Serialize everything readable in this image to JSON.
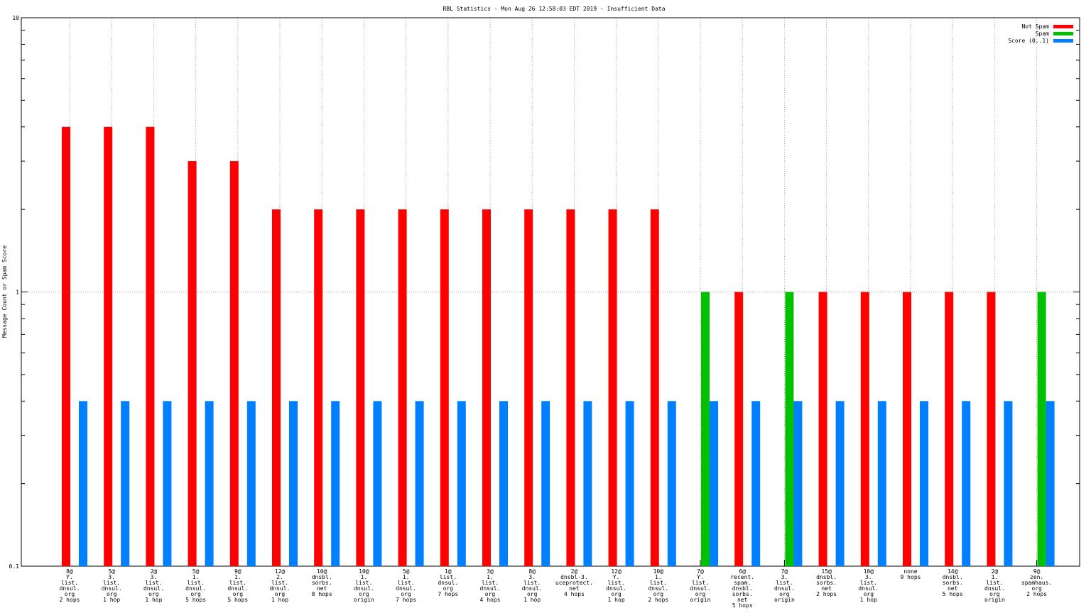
{
  "chart_data": {
    "type": "bar",
    "title": "RBL Statistics - Mon Aug 26 12:58:03 EDT 2019 - Insufficient Data",
    "y_label": "Message Count or Spam Score",
    "log_y": true,
    "grid": true,
    "legend": "top-right",
    "ylim": [
      0.1,
      10
    ],
    "yticks": [
      0.1,
      1,
      10
    ],
    "categories": [
      [
        "8@",
        "Y.",
        "list.",
        "dnsul.",
        "org",
        "2 hops"
      ],
      [
        "5@",
        "3.",
        "list.",
        "dnsul.",
        "org",
        "1 hop"
      ],
      [
        "2@",
        "3.",
        "list.",
        "dnsul.",
        "org",
        "1 hop"
      ],
      [
        "5@",
        "1.",
        "list.",
        "dnsul.",
        "org",
        "5 hops"
      ],
      [
        "9@",
        "1.",
        "list.",
        "dnsul.",
        "org",
        "5 hops"
      ],
      [
        "12@",
        "2.",
        "list.",
        "dnsul.",
        "org",
        "1 hop"
      ],
      [
        "10@",
        "dnsbl.",
        "sorbs.",
        "net",
        "8 hops"
      ],
      [
        "10@",
        "1.",
        "list.",
        "dnsul.",
        "org",
        "origin"
      ],
      [
        "5@",
        "1.",
        "list.",
        "dnsul.",
        "org",
        "7 hops"
      ],
      [
        "1@",
        "list.",
        "dnsul.",
        "org",
        "7 hops"
      ],
      [
        "3@",
        "1.",
        "list.",
        "dnsul.",
        "org",
        "4 hops"
      ],
      [
        "8@",
        "3.",
        "list.",
        "dnsul.",
        "org",
        "1 hop"
      ],
      [
        "2@",
        "dnsbl-3.",
        "uceprotect.",
        "net",
        "4 hops"
      ],
      [
        "12@",
        "Y.",
        "list.",
        "dnsul.",
        "org",
        "1 hop"
      ],
      [
        "10@",
        "1.",
        "list.",
        "dnsul.",
        "org",
        "2 hops"
      ],
      [
        "7@",
        "Y.",
        "list.",
        "dnsul.",
        "org",
        "origin"
      ],
      [
        "6@",
        "recent.",
        "spam.",
        "dnsbl.",
        "sorbs.",
        "net",
        "5 hops"
      ],
      [
        "7@",
        "3.",
        "list.",
        "dnsul.",
        "org",
        "origin"
      ],
      [
        "15@",
        "dnsbl.",
        "sorbs.",
        "net",
        "2 hops"
      ],
      [
        "10@",
        "3.",
        "list.",
        "dnsul.",
        "org",
        "1 hop"
      ],
      [
        "none",
        "9 hops"
      ],
      [
        "14@",
        "dnsbl.",
        "sorbs.",
        "net",
        "5 hops"
      ],
      [
        "2@",
        "1.",
        "list.",
        "dnsul.",
        "org",
        "origin"
      ],
      [
        "9@",
        "zen.",
        "spamhaus.",
        "org",
        "2 hops"
      ]
    ],
    "series": [
      {
        "name": "Not Spam",
        "color": "#ff0000",
        "values": [
          4,
          4,
          4,
          3,
          3,
          2,
          2,
          2,
          2,
          2,
          2,
          2,
          2,
          2,
          2,
          null,
          1,
          null,
          1,
          1,
          1,
          1,
          1,
          null
        ]
      },
      {
        "name": "Spam",
        "color": "#00c000",
        "values": [
          null,
          null,
          null,
          null,
          null,
          null,
          null,
          null,
          null,
          null,
          null,
          null,
          null,
          null,
          null,
          1,
          null,
          1,
          null,
          null,
          null,
          null,
          null,
          1
        ]
      },
      {
        "name": "Score (0..1)",
        "color": "#0080ff",
        "values": [
          0.4,
          0.4,
          0.4,
          0.4,
          0.4,
          0.4,
          0.4,
          0.4,
          0.4,
          0.4,
          0.4,
          0.4,
          0.4,
          0.4,
          0.4,
          0.4,
          0.4,
          0.4,
          0.4,
          0.4,
          0.4,
          0.4,
          0.4,
          0.4
        ]
      }
    ]
  }
}
